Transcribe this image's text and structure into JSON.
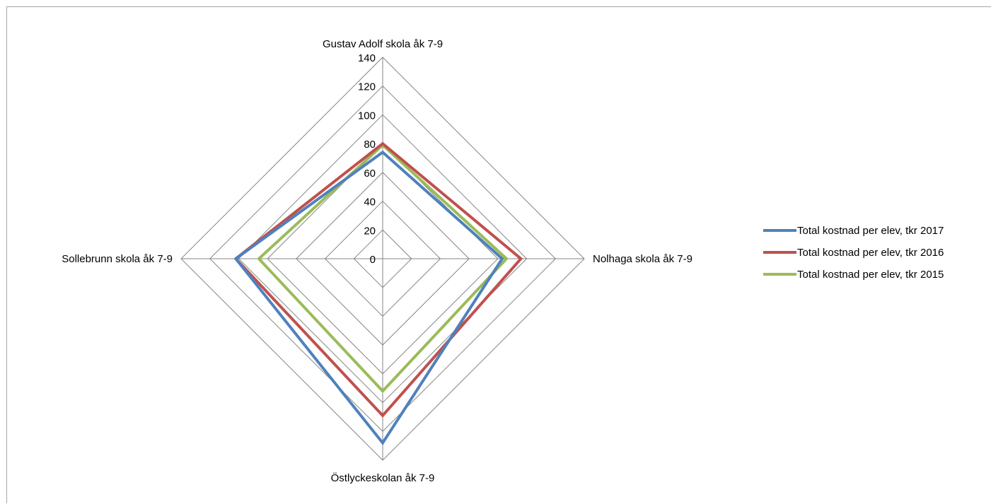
{
  "chart_data": {
    "type": "radar",
    "title": "",
    "categories": [
      "Gustav Adolf skola åk 7-9",
      "Nolhaga skola åk 7-9",
      "Östlyckeskolan åk 7-9",
      "Sollebrunn skola åk 7-9"
    ],
    "radial_axis": {
      "min": 0,
      "max": 140,
      "step": 20,
      "ticks": [
        "0",
        "20",
        "40",
        "60",
        "80",
        "100",
        "120",
        "140"
      ]
    },
    "series": [
      {
        "name": "Total kostnad per elev, tkr 2017",
        "values": [
          74,
          83,
          128,
          102
        ],
        "color": "#4f81bd"
      },
      {
        "name": "Total kostnad per elev, tkr 2016",
        "values": [
          80,
          96,
          109,
          102
        ],
        "color": "#c0504d"
      },
      {
        "name": "Total kostnad per elev, tkr 2015",
        "values": [
          79,
          86,
          92,
          86
        ],
        "color": "#9bbb59"
      }
    ],
    "grid": true,
    "legend_position": "right"
  }
}
